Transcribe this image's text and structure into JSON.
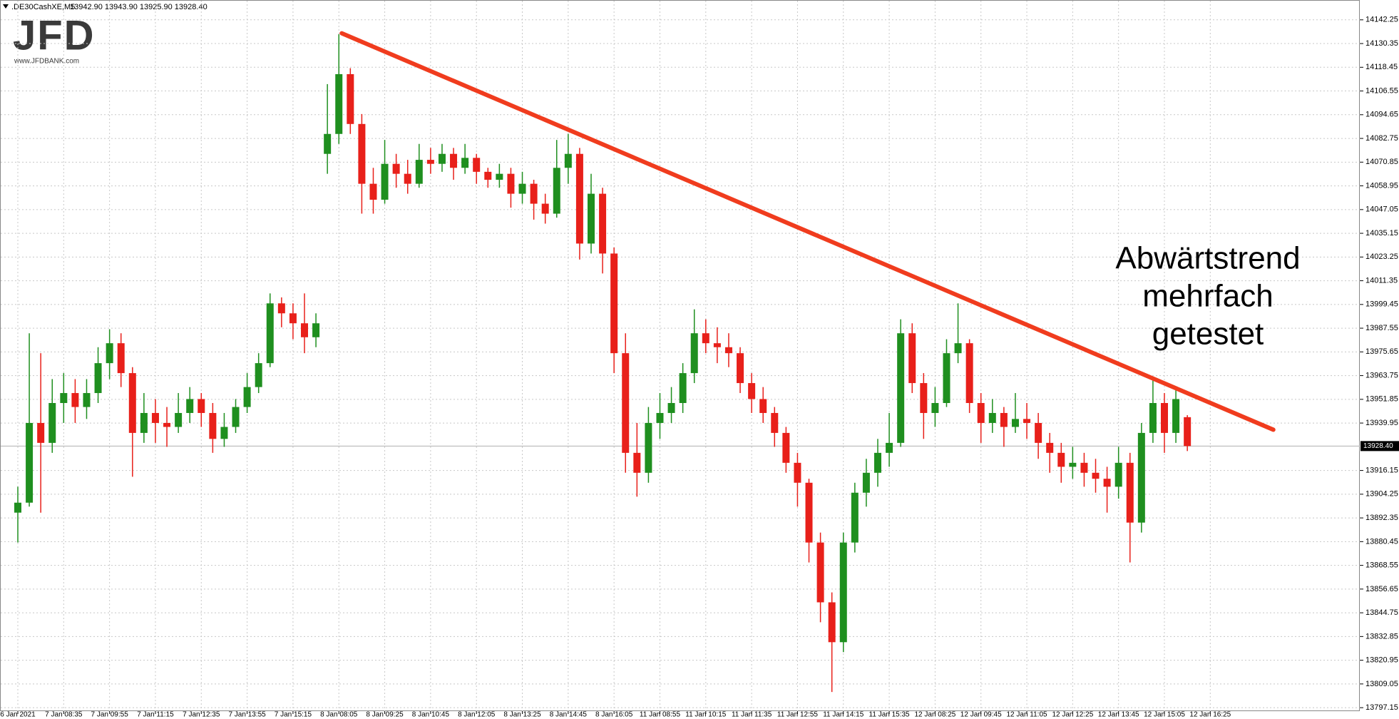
{
  "header": {
    "symbol": ".DE30CashXE,M5",
    "quote": "13942.90 13943.90 13925.90 13928.40"
  },
  "logo": {
    "text": "JFD",
    "url": "www.JFDBANK.com"
  },
  "chart_data": {
    "type": "candlestick",
    "series": [
      {
        "up_color": "#1f8f1f",
        "down_color": "#e8201a",
        "open": [
          13895,
          13900,
          13940,
          13930,
          13950,
          13955,
          13948,
          13955,
          13970,
          13980,
          13965,
          13935,
          13945,
          13940,
          13938,
          13945,
          13952,
          13945,
          13932,
          13938,
          13948,
          13958,
          13970,
          14000,
          13995,
          13990,
          13983,
          14075,
          14085,
          14115,
          14090,
          14060,
          14052,
          14070,
          14065,
          14060,
          14072,
          14070,
          14075,
          14068,
          14073,
          14066,
          14062,
          14065,
          14055,
          14060,
          14050,
          14045,
          14068,
          14075,
          14030,
          14055,
          14025,
          13975,
          13925,
          13915,
          13940,
          13945,
          13950,
          13965,
          13985,
          13980,
          13978,
          13975,
          13960,
          13952,
          13945,
          13935,
          13920,
          13910,
          13880,
          13850,
          13830,
          13880,
          13905,
          13915,
          13925,
          13930,
          13985,
          13960,
          13945,
          13950,
          13975,
          13980,
          13950,
          13940,
          13945,
          13938,
          13942,
          13940,
          13930,
          13925,
          13918,
          13920,
          13915,
          13912,
          13908,
          13920,
          13890,
          13935,
          13950,
          13935,
          13942.9
        ],
        "high": [
          13908,
          13985,
          13975,
          13962,
          13965,
          13962,
          13962,
          13978,
          13987,
          13985,
          13968,
          13955,
          13952,
          13948,
          13955,
          13958,
          13955,
          13950,
          13945,
          13952,
          13965,
          13975,
          14005,
          14003,
          14000,
          14005,
          13995,
          14110,
          14135,
          14118,
          14095,
          14068,
          14082,
          14075,
          14072,
          14080,
          14078,
          14080,
          14078,
          14080,
          14075,
          14068,
          14070,
          14068,
          14066,
          14062,
          14055,
          14082,
          14085,
          14078,
          14065,
          14058,
          14028,
          13985,
          13940,
          13948,
          13955,
          13958,
          13970,
          13997,
          13992,
          13988,
          13985,
          13978,
          13965,
          13958,
          13948,
          13938,
          13925,
          13912,
          13885,
          13855,
          13885,
          13910,
          13922,
          13932,
          13945,
          13992,
          13990,
          13965,
          13958,
          13982,
          14000,
          13982,
          13955,
          13952,
          13948,
          13955,
          13950,
          13945,
          13935,
          13930,
          13928,
          13925,
          13922,
          13918,
          13928,
          13925,
          13940,
          13962,
          13955,
          13958,
          13943.9
        ],
        "low": [
          13880,
          13898,
          13895,
          13925,
          13940,
          13940,
          13942,
          13950,
          13962,
          13958,
          13913,
          13930,
          13930,
          13928,
          13935,
          13940,
          13938,
          13925,
          13928,
          13935,
          13945,
          13955,
          13968,
          13988,
          13982,
          13975,
          13978,
          14065,
          14080,
          14085,
          14045,
          14045,
          14050,
          14058,
          14055,
          14058,
          14065,
          14066,
          14062,
          14065,
          14060,
          14058,
          14058,
          14048,
          14050,
          14042,
          14040,
          14043,
          14060,
          14022,
          14025,
          14015,
          13965,
          13915,
          13903,
          13910,
          13932,
          13940,
          13945,
          13960,
          13975,
          13970,
          13968,
          13955,
          13945,
          13940,
          13928,
          13915,
          13898,
          13870,
          13840,
          13805,
          13825,
          13875,
          13898,
          13908,
          13918,
          13928,
          13955,
          13932,
          13938,
          13948,
          13970,
          13945,
          13930,
          13935,
          13928,
          13935,
          13932,
          13922,
          13915,
          13910,
          13912,
          13908,
          13905,
          13895,
          13902,
          13870,
          13885,
          13930,
          13925,
          13930,
          13925.9
        ],
        "close": [
          13900,
          13940,
          13930,
          13950,
          13955,
          13948,
          13955,
          13970,
          13980,
          13965,
          13935,
          13945,
          13940,
          13938,
          13945,
          13952,
          13945,
          13932,
          13938,
          13948,
          13958,
          13970,
          14000,
          13995,
          13990,
          13983,
          13990,
          14085,
          14115,
          14090,
          14060,
          14052,
          14070,
          14065,
          14060,
          14072,
          14070,
          14075,
          14068,
          14073,
          14066,
          14062,
          14065,
          14055,
          14060,
          14050,
          14045,
          14068,
          14075,
          14030,
          14055,
          14025,
          13975,
          13925,
          13915,
          13940,
          13945,
          13950,
          13965,
          13985,
          13980,
          13978,
          13975,
          13960,
          13952,
          13945,
          13935,
          13920,
          13910,
          13880,
          13850,
          13830,
          13880,
          13905,
          13915,
          13925,
          13930,
          13985,
          13960,
          13945,
          13950,
          13975,
          13980,
          13950,
          13940,
          13945,
          13938,
          13942,
          13940,
          13930,
          13925,
          13918,
          13920,
          13915,
          13912,
          13908,
          13920,
          13890,
          13935,
          13950,
          13935,
          13952,
          13928.4
        ]
      }
    ],
    "xticks": [
      {
        "value": 0,
        "label": "6 Jan 2021"
      },
      {
        "value": 4,
        "label": "7 Jan 08:35"
      },
      {
        "value": 8,
        "label": "7 Jan 09:55"
      },
      {
        "value": 12,
        "label": "7 Jan 11:15"
      },
      {
        "value": 16,
        "label": "7 Jan 12:35"
      },
      {
        "value": 20,
        "label": "7 Jan 13:55"
      },
      {
        "value": 24,
        "label": "7 Jan 15:15"
      },
      {
        "value": 28,
        "label": "8 Jan 08:05"
      },
      {
        "value": 32,
        "label": "8 Jan 09:25"
      },
      {
        "value": 36,
        "label": "8 Jan 10:45"
      },
      {
        "value": 40,
        "label": "8 Jan 12:05"
      },
      {
        "value": 44,
        "label": "8 Jan 13:25"
      },
      {
        "value": 48,
        "label": "8 Jan 14:45"
      },
      {
        "value": 52,
        "label": "8 Jan 16:05"
      },
      {
        "value": 56,
        "label": "11 Jan 08:55"
      },
      {
        "value": 60,
        "label": "11 Jan 10:15"
      },
      {
        "value": 64,
        "label": "11 Jan 11:35"
      },
      {
        "value": 68,
        "label": "11 Jan 12:55"
      },
      {
        "value": 72,
        "label": "11 Jan 14:15"
      },
      {
        "value": 76,
        "label": "11 Jan 15:35"
      },
      {
        "value": 80,
        "label": "12 Jan 08:25"
      },
      {
        "value": 84,
        "label": "12 Jan 09:45"
      },
      {
        "value": 88,
        "label": "12 Jan 11:05"
      },
      {
        "value": 92,
        "label": "12 Jan 12:25"
      },
      {
        "value": 96,
        "label": "12 Jan 13:45"
      },
      {
        "value": 100,
        "label": "12 Jan 15:05"
      },
      {
        "value": 104,
        "label": "12 Jan 16:25"
      }
    ],
    "ylim": [
      13795.4,
      14152.2
    ],
    "yticks": [
      14142.25,
      14130.35,
      14118.45,
      14106.55,
      14094.65,
      14082.75,
      14070.85,
      14058.95,
      14047.05,
      14035.15,
      14023.25,
      14011.35,
      13999.45,
      13987.55,
      13975.65,
      13963.75,
      13951.85,
      13939.95,
      13916.15,
      13904.25,
      13892.35,
      13880.45,
      13868.55,
      13856.65,
      13844.75,
      13832.85,
      13820.95,
      13809.05,
      13797.15
    ],
    "grid": true,
    "current_price": {
      "value": 13928.4,
      "label": "13928.40"
    },
    "trendline": {
      "x": [
        28.25,
        109.5
      ],
      "y": [
        14135.5,
        13936.6
      ],
      "color": "#f03c1e"
    },
    "annotation": [
      "Abwärtstrend",
      "mehrfach",
      "getestet"
    ]
  }
}
